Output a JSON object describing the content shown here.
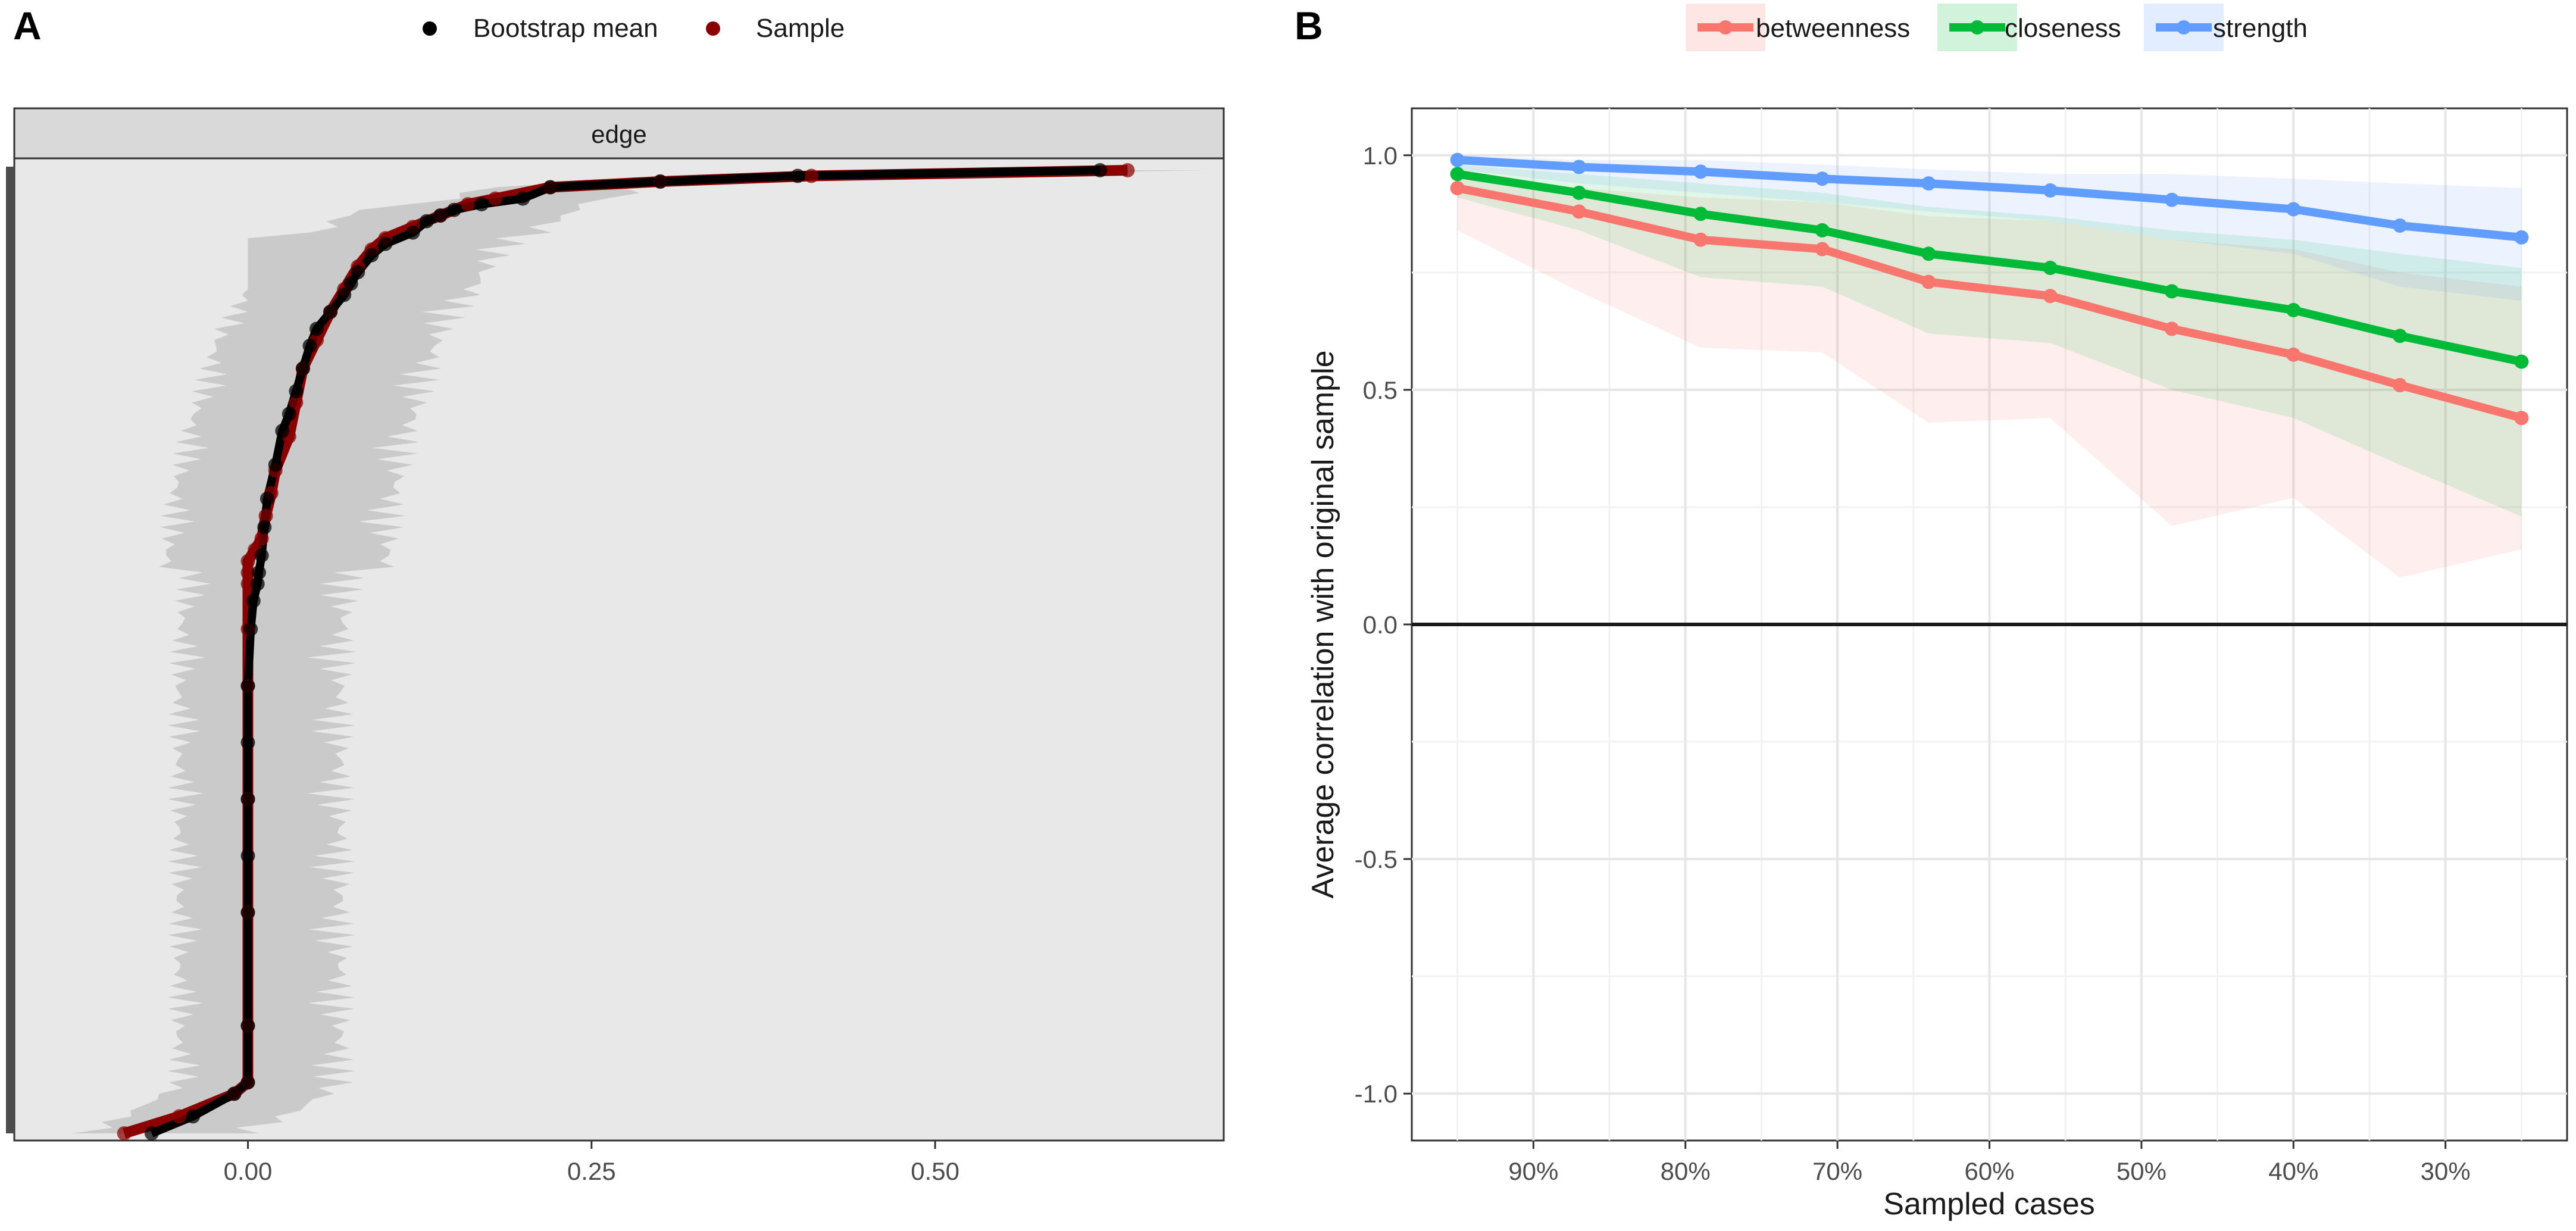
{
  "panel_a": {
    "panel_letter": "A",
    "legend": [
      {
        "label": "Bootstrap mean",
        "color": "#000000"
      },
      {
        "label": "Sample",
        "color": "#8b0000"
      }
    ],
    "strip_label": "edge",
    "colors": {
      "panel_bg": "#e8e8e8",
      "strip_bg": "#d9d9d9",
      "band": "#c8c8c8",
      "bootstrap": "#000000",
      "sample": "#8b0000"
    }
  },
  "panel_b": {
    "panel_letter": "B",
    "legend": [
      {
        "label": "betweenness",
        "color": "#f8766d"
      },
      {
        "label": "closeness",
        "color": "#00ba38"
      },
      {
        "label": "strength",
        "color": "#619cff"
      }
    ]
  },
  "chart_data": [
    {
      "type": "line",
      "title": "edge",
      "xlabel": "",
      "ylabel": "",
      "xlim": [
        -0.17,
        0.71
      ],
      "xticks": [
        0.0,
        0.25,
        0.5
      ],
      "xtick_labels": [
        "0.00",
        "0.25",
        "0.50"
      ],
      "n_edges": 171,
      "series": [
        {
          "name": "Bootstrap mean",
          "x": [
            -0.07,
            -0.04,
            -0.01,
            0.0,
            0.0,
            0.0,
            0.0,
            0.0,
            0.0,
            0.0,
            0.002,
            0.004,
            0.007,
            0.008,
            0.01,
            0.012,
            0.014,
            0.02,
            0.025,
            0.03,
            0.035,
            0.04,
            0.045,
            0.05,
            0.06,
            0.07,
            0.075,
            0.08,
            0.09,
            0.1,
            0.12,
            0.13,
            0.14,
            0.15,
            0.17,
            0.2,
            0.22,
            0.3,
            0.4,
            0.62
          ],
          "rank": [
            1,
            4,
            8,
            10,
            20,
            40,
            50,
            60,
            70,
            80,
            90,
            95,
            98,
            100,
            103,
            108,
            113,
            119,
            125,
            128,
            132,
            136,
            140,
            143,
            146,
            149,
            151,
            153,
            156,
            158,
            160,
            162,
            163,
            164,
            165,
            166,
            168,
            169,
            170,
            171
          ]
        },
        {
          "name": "Sample",
          "x": [
            -0.09,
            -0.05,
            -0.01,
            0.0,
            0.0,
            0.0,
            0.0,
            0.0,
            0.0,
            0.0,
            0.0,
            0.0,
            0.005,
            0.01,
            0.013,
            0.017,
            0.02,
            0.03,
            0.035,
            0.04,
            0.05,
            0.06,
            0.07,
            0.08,
            0.09,
            0.1,
            0.12,
            0.14,
            0.16,
            0.18,
            0.22,
            0.3,
            0.41,
            0.64
          ],
          "rank": [
            1,
            4,
            8,
            10,
            20,
            40,
            60,
            80,
            90,
            98,
            100,
            102,
            104,
            106,
            110,
            114,
            118,
            124,
            130,
            136,
            141,
            146,
            150,
            154,
            157,
            159,
            161,
            163,
            165,
            166,
            168,
            169,
            170,
            171
          ]
        }
      ]
    },
    {
      "type": "line",
      "title": "",
      "xlabel": "Sampled cases",
      "ylabel": "Average correlation with original sample",
      "ylim": [
        -1.1,
        1.1
      ],
      "yticks": [
        -1.0,
        -0.5,
        0.0,
        0.5,
        1.0
      ],
      "ytick_labels": [
        "-1.0",
        "-0.5",
        "0.0",
        "0.5",
        "1.0"
      ],
      "x_categories": [
        "90%",
        "80%",
        "70%",
        "60%",
        "50%",
        "40%",
        "30%"
      ],
      "x_category_positions": [
        90,
        80,
        70,
        60,
        50,
        40,
        30
      ],
      "xlim": [
        98,
        22
      ],
      "x": [
        95,
        87,
        79,
        71,
        64,
        56,
        48,
        40,
        33,
        25
      ],
      "series": [
        {
          "name": "betweenness",
          "color": "#f8766d",
          "values": [
            0.93,
            0.88,
            0.82,
            0.8,
            0.73,
            0.7,
            0.63,
            0.575,
            0.51,
            0.44
          ],
          "lower": [
            0.84,
            0.71,
            0.59,
            0.58,
            0.43,
            0.44,
            0.21,
            0.27,
            0.1,
            0.16
          ],
          "upper": [
            0.96,
            0.93,
            0.91,
            0.9,
            0.87,
            0.86,
            0.82,
            0.8,
            0.75,
            0.72
          ]
        },
        {
          "name": "closeness",
          "color": "#00ba38",
          "values": [
            0.96,
            0.92,
            0.875,
            0.84,
            0.79,
            0.76,
            0.71,
            0.67,
            0.615,
            0.56
          ],
          "lower": [
            0.91,
            0.84,
            0.74,
            0.72,
            0.62,
            0.6,
            0.5,
            0.44,
            0.34,
            0.23
          ],
          "upper": [
            0.98,
            0.96,
            0.94,
            0.92,
            0.89,
            0.87,
            0.84,
            0.82,
            0.79,
            0.76
          ]
        },
        {
          "name": "strength",
          "color": "#619cff",
          "values": [
            0.99,
            0.975,
            0.965,
            0.95,
            0.94,
            0.925,
            0.905,
            0.885,
            0.85,
            0.825
          ],
          "lower": [
            0.97,
            0.94,
            0.92,
            0.9,
            0.88,
            0.86,
            0.82,
            0.79,
            0.72,
            0.69
          ],
          "upper": [
            1.0,
            0.99,
            0.99,
            0.98,
            0.97,
            0.96,
            0.96,
            0.95,
            0.94,
            0.93
          ]
        }
      ]
    }
  ]
}
